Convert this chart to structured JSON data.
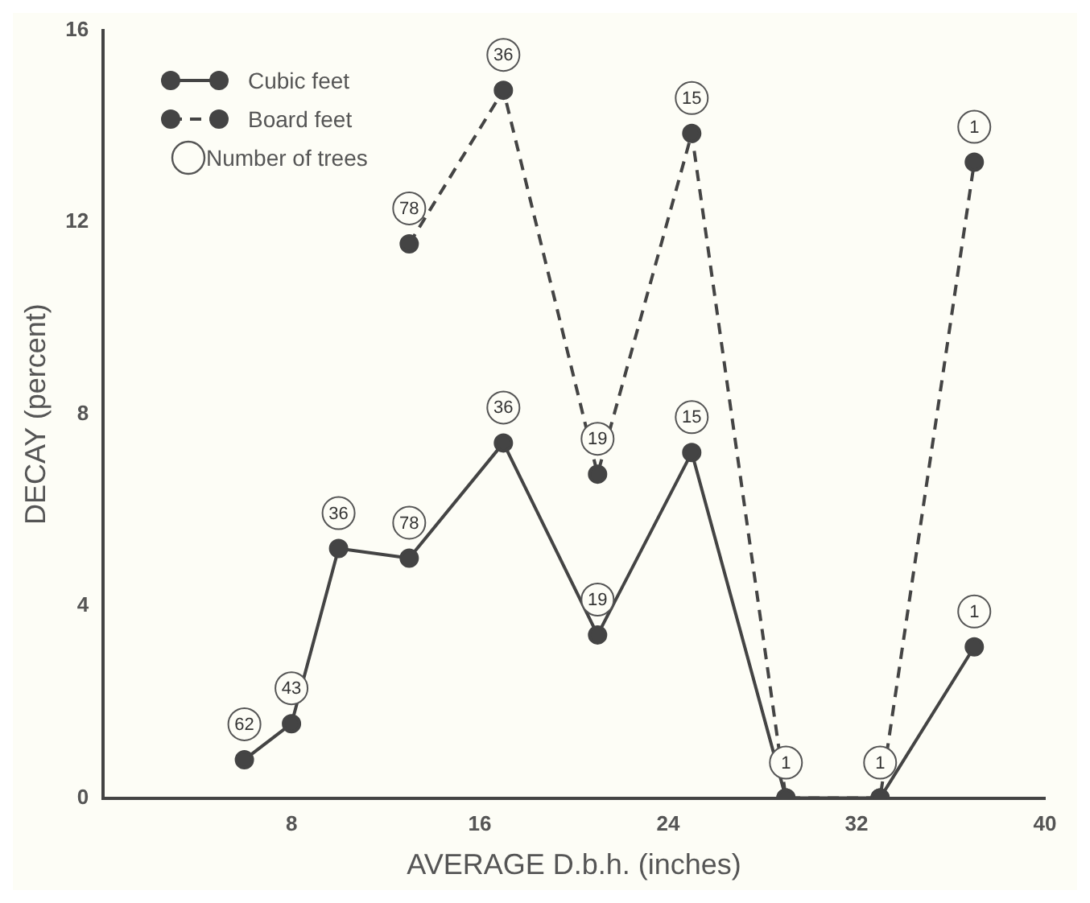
{
  "chart_data": {
    "type": "line",
    "xlabel": "AVERAGE D.b.h. (inches)",
    "ylabel": "DECAY (percent)",
    "xlim": [
      0,
      40
    ],
    "xticks": [
      8,
      16,
      24,
      32,
      40
    ],
    "ylim": [
      0,
      16
    ],
    "yticks": [
      0,
      4,
      8,
      12,
      16
    ],
    "grid": false,
    "legend": "top left",
    "marker": "circle",
    "annotations": [
      "Number of trees",
      {
        "text": "62",
        "x": 6,
        "y": 0.8
      },
      {
        "text": "43",
        "x": 8,
        "y": 1.55
      },
      {
        "text": "36",
        "x": 10,
        "y": 5.2
      },
      {
        "text": "78",
        "x": 13,
        "y": 5.0
      },
      {
        "text": "36",
        "x": 17,
        "y": 7.4
      },
      {
        "text": "19",
        "x": 21,
        "y": 3.4
      },
      {
        "text": "15",
        "x": 25,
        "y": 7.2
      },
      {
        "text": "1",
        "x": 29,
        "y": 0
      },
      {
        "text": "1",
        "x": 33,
        "y": 0
      },
      {
        "text": "1",
        "x": 37,
        "y": 3.15
      },
      {
        "text": "78",
        "x": 13,
        "y": 11.55
      },
      {
        "text": "36",
        "x": 17,
        "y": 14.75
      },
      {
        "text": "19",
        "x": 21,
        "y": 6.75
      },
      {
        "text": "15",
        "x": 25,
        "y": 13.85
      },
      {
        "text": "1",
        "x": 37,
        "y": 13.25
      }
    ],
    "series": [
      {
        "name": "Cubic feet",
        "color": "#444444",
        "line_style": "solid",
        "x": [
          6,
          8,
          10,
          13,
          17,
          21,
          25,
          29,
          33,
          37
        ],
        "values": [
          0.8,
          1.55,
          5.2,
          5.0,
          7.4,
          3.4,
          7.2,
          0,
          0,
          3.15
        ]
      },
      {
        "name": "Board feet",
        "color": "#444444",
        "line_style": "dashed",
        "x": [
          13,
          17,
          21,
          25,
          29,
          33,
          37
        ],
        "values": [
          11.55,
          14.75,
          6.75,
          13.85,
          0,
          0,
          13.25
        ]
      }
    ]
  }
}
